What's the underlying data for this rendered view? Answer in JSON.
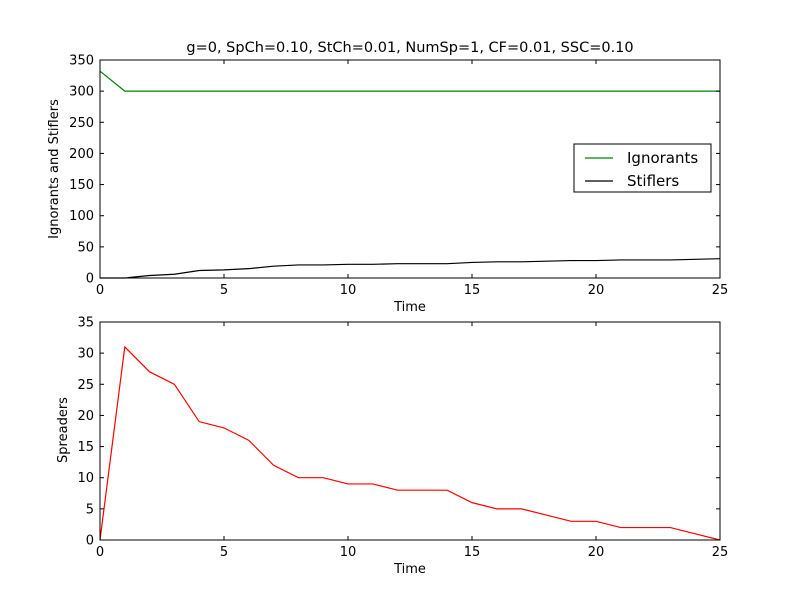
{
  "chart_data": [
    {
      "type": "line",
      "title": "g=0, SpCh=0.10, StCh=0.01, NumSp=1, CF=0.01, SSC=0.10",
      "xlabel": "Time",
      "ylabel": "Ignorants and Stiflers",
      "xlim": [
        0,
        25
      ],
      "ylim": [
        0,
        350
      ],
      "xticks": [
        0,
        5,
        10,
        15,
        20,
        25
      ],
      "yticks": [
        0,
        50,
        100,
        150,
        200,
        250,
        300,
        350
      ],
      "grid": false,
      "legend_position": "center-right",
      "x": [
        0,
        1,
        2,
        3,
        4,
        5,
        6,
        7,
        8,
        9,
        10,
        11,
        12,
        13,
        14,
        15,
        16,
        17,
        18,
        19,
        20,
        21,
        22,
        23,
        24,
        25
      ],
      "series": [
        {
          "name": "Ignorants",
          "color": "#008000",
          "values": [
            332,
            300,
            300,
            300,
            300,
            300,
            300,
            300,
            300,
            300,
            300,
            300,
            300,
            300,
            300,
            300,
            300,
            300,
            300,
            300,
            300,
            300,
            300,
            300,
            300,
            300
          ]
        },
        {
          "name": "Stiflers",
          "color": "#000000",
          "values": [
            0,
            0,
            4,
            6,
            12,
            13,
            15,
            19,
            21,
            21,
            22,
            22,
            23,
            23,
            23,
            25,
            26,
            26,
            27,
            28,
            28,
            29,
            29,
            29,
            30,
            31
          ]
        }
      ]
    },
    {
      "type": "line",
      "xlabel": "Time",
      "ylabel": "Spreaders",
      "xlim": [
        0,
        25
      ],
      "ylim": [
        0,
        35
      ],
      "xticks": [
        0,
        5,
        10,
        15,
        20,
        25
      ],
      "yticks": [
        0,
        5,
        10,
        15,
        20,
        25,
        30,
        35
      ],
      "grid": false,
      "x": [
        0,
        1,
        2,
        3,
        4,
        5,
        6,
        7,
        8,
        9,
        10,
        11,
        12,
        13,
        14,
        15,
        16,
        17,
        18,
        19,
        20,
        21,
        22,
        23,
        24,
        25
      ],
      "series": [
        {
          "color": "#ff0000",
          "values": [
            0,
            31,
            27,
            25,
            19,
            18,
            16,
            12,
            10,
            10,
            9,
            9,
            8,
            8,
            8,
            6,
            5,
            5,
            4,
            3,
            3,
            2,
            2,
            2,
            1,
            0
          ]
        }
      ]
    }
  ]
}
